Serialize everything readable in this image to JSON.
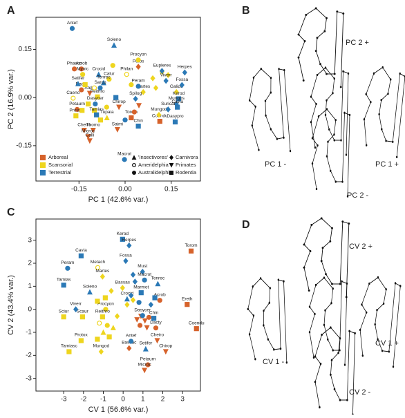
{
  "chart_data": [
    {
      "type": "scatter",
      "panel": "A",
      "x_label": "PC 1 (42.6% var.)",
      "y_label": "PC 2 (16.9% var.)",
      "xlim": [
        -0.29,
        0.245
      ],
      "ylim": [
        -0.26,
        0.25
      ],
      "xticks": [
        -0.15,
        {
          "value": 0,
          "label": "0.00"
        },
        0.15
      ],
      "yticks": [
        -0.15,
        {
          "value": 0,
          "label": "0.00"
        },
        0.15
      ],
      "legend": "lower left",
      "shape_legend": [
        {
          "name": "'Insectivores'",
          "marker": "triangle"
        },
        {
          "name": "Ameridelphia",
          "marker": "circle-open"
        },
        {
          "name": "Australidelphia",
          "marker": "circle"
        },
        {
          "name": "Carnivora",
          "marker": "diamond"
        },
        {
          "name": "Primates",
          "marker": "triangle-down"
        },
        {
          "name": "Rodentia",
          "marker": "square"
        }
      ],
      "series": [
        {
          "name": "Arboreal",
          "color": "#d6622b",
          "labels": [
            "Phasco",
            "Acrob",
            "Potos",
            "Dacty",
            "Atele",
            "Petaurn",
            "Chirop",
            "Torom",
            "Coendu",
            "Cheiro",
            "Thomo",
            "Saimi",
            "Microc",
            "Calli",
            null,
            null
          ],
          "x": [
            -0.165,
            -0.142,
            0.043,
            -0.142,
            -0.115,
            -0.156,
            -0.02,
            0.02,
            0.113,
            -0.133,
            -0.104,
            -0.025,
            -0.12,
            -0.115,
            0.045,
            0.03
          ],
          "y": [
            0.089,
            0.089,
            0.096,
            0.024,
            0.013,
            -0.037,
            -0.03,
            -0.063,
            -0.074,
            -0.102,
            -0.102,
            -0.1,
            -0.122,
            -0.135,
            -0.025,
            -0.045
          ],
          "markers": [
            "circle",
            "circle",
            "diamond",
            "circle",
            "triangle-down",
            "circle",
            "triangle-down",
            "square",
            "square",
            "triangle-down",
            "triangle-down",
            "triangle-down",
            "triangle-down",
            "triangle-down",
            "triangle-down",
            "circle"
          ]
        },
        {
          "name": "Scansorial",
          "color": "#eed51e",
          "labels": [
            "Procyon",
            "Philan",
            "Myoic",
            "Calur",
            "Caeno",
            "Galide",
            "Martes",
            "Reithro",
            "Protox",
            "Tupaia",
            "Mungod",
            null,
            null,
            null,
            null,
            null,
            null,
            null,
            null,
            null,
            null,
            null,
            null,
            null
          ],
          "x": [
            0.043,
            0.005,
            -0.138,
            -0.052,
            -0.169,
            0.167,
            0.059,
            -0.09,
            -0.16,
            -0.059,
            0.11,
            -0.13,
            -0.12,
            -0.14,
            -0.1,
            -0.08,
            -0.06,
            0.09,
            0.1,
            0.12,
            0.14,
            -0.04,
            -0.1,
            0.02
          ],
          "y": [
            0.117,
            0.072,
            0.072,
            0.057,
            -0.002,
            0.017,
            0.017,
            0.002,
            -0.057,
            -0.063,
            -0.054,
            0.04,
            -0.02,
            -0.04,
            -0.04,
            -0.07,
            -0.03,
            0.06,
            0.03,
            0.08,
            0.07,
            0.1,
            0.03,
            0.04
          ],
          "markers": [
            "circle",
            "circle-open",
            "circle",
            "circle",
            "circle-open",
            "diamond",
            "diamond",
            "square",
            "square",
            "triangle",
            "diamond",
            "square",
            "square",
            "square",
            "square",
            "square",
            "circle",
            "diamond",
            "diamond",
            "diamond",
            "diamond",
            "circle",
            "circle-open",
            "circle"
          ]
        },
        {
          "name": "Terrestrial",
          "color": "#2b79b6",
          "labels": [
            "Antef",
            "Soleno",
            "Crocid",
            "Eupleres",
            "Herpes",
            "Viverr",
            "Fossa",
            "Kerod",
            "Mungos",
            "Setifer",
            "Tenrec",
            "Sarco",
            "Peram",
            "Spilog",
            "Dasycer",
            "Tamias",
            "Suricat",
            "Dasypro",
            "Chin",
            "Cavia",
            "Macrot",
            null,
            null
          ],
          "x": [
            -0.172,
            -0.036,
            -0.086,
            0.12,
            0.194,
            0.133,
            0.185,
            0.174,
            0.167,
            -0.153,
            -0.07,
            -0.081,
            0.043,
            0.034,
            -0.097,
            -0.093,
            0.14,
            0.163,
            0.043,
            0.17,
            -0.002,
            -0.03,
            0.0
          ],
          "y": [
            0.215,
            0.163,
            0.072,
            0.083,
            0.078,
            0.052,
            0.039,
            -0.004,
            -0.02,
            0.043,
            0.046,
            0.03,
            0.035,
            -0.004,
            -0.02,
            -0.054,
            -0.037,
            -0.076,
            -0.089,
            -0.03,
            -0.193,
            0.0,
            -0.07
          ],
          "markers": [
            "circle",
            "triangle",
            "triangle",
            "diamond",
            "diamond",
            "diamond",
            "diamond",
            "square",
            "diamond",
            "triangle",
            "triangle",
            "circle",
            "circle",
            "diamond",
            "circle",
            "square",
            "diamond",
            "square",
            "square",
            "square",
            "circle",
            "square",
            "circle"
          ]
        }
      ]
    },
    {
      "type": "scatter",
      "panel": "C",
      "x_label": "CV 1 (56.6% var.)",
      "y_label": "CV 2 (43.4% var.)",
      "xlim": [
        -4.4,
        3.9
      ],
      "ylim": [
        -3.55,
        3.92
      ],
      "xticks": [
        -3,
        -2,
        -1,
        0,
        1,
        2,
        3
      ],
      "yticks": [
        -3,
        -2,
        -1,
        0,
        1,
        2,
        3
      ],
      "series": [
        {
          "name": "Arboreal",
          "color": "#d6622b",
          "labels": [
            "Torom",
            "Acrob",
            "Ereth",
            "Dacty",
            "Coendu",
            "Cheiro",
            "Chirop",
            "Bassac",
            "Petaurn",
            "Microc",
            null,
            null,
            null,
            null,
            null,
            null
          ],
          "x": [
            3.43,
            1.85,
            3.23,
            1.65,
            3.7,
            1.72,
            2.15,
            0.3,
            1.25,
            1.08,
            0.9,
            1.1,
            0.7,
            1.3,
            0.85,
            1.2
          ],
          "y": [
            2.53,
            0.39,
            0.21,
            -0.81,
            -0.84,
            -1.36,
            -1.84,
            -1.69,
            -2.41,
            -2.65,
            -0.3,
            -0.5,
            -0.45,
            -0.35,
            -0.7,
            -0.8
          ],
          "markers": [
            "square",
            "circle",
            "square",
            "circle",
            "square",
            "triangle-down",
            "triangle-down",
            "diamond",
            "circle",
            "triangle-down",
            "triangle-down",
            "triangle-down",
            "triangle-down",
            "circle",
            "circle",
            "triangle-down"
          ]
        },
        {
          "name": "Scansorial",
          "color": "#eed51e",
          "labels": [
            "Metach",
            "Martes",
            "Bassas",
            "Procyon",
            "Reithro",
            "Sciur",
            "Scaur",
            "Protox",
            "Tamiasc",
            "Mungod",
            null,
            null,
            null,
            null,
            null,
            null,
            null,
            null,
            null,
            null,
            null,
            null
          ],
          "x": [
            -1.28,
            -1.04,
            -0.03,
            -0.88,
            -1.04,
            -3.0,
            -2.05,
            -2.12,
            -2.73,
            -1.11,
            -1.3,
            -0.9,
            -0.6,
            -1.2,
            -0.8,
            -1.0,
            -0.5,
            -0.7,
            -1.3,
            0.2,
            -0.3,
            0.5
          ],
          "y": [
            1.81,
            1.42,
            0.93,
            0.0,
            -0.33,
            -0.33,
            -0.33,
            -1.36,
            -1.84,
            -1.84,
            0.35,
            0.5,
            0.8,
            -0.6,
            -0.7,
            -1.0,
            -0.8,
            -1.2,
            -1.3,
            0.2,
            -0.3,
            0.4
          ],
          "markers": [
            "circle-open",
            "diamond",
            "diamond",
            "circle",
            "square",
            "square",
            "square",
            "square",
            "square",
            "diamond",
            "square",
            "square",
            "diamond",
            "circle-open",
            "circle",
            "triangle",
            "triangle",
            "square",
            "square",
            "diamond",
            "diamond",
            "diamond"
          ]
        },
        {
          "name": "Terrestrial",
          "color": "#2b79b6",
          "labels": [
            "Kerod",
            "Herpes",
            "Cavia",
            "Fossa",
            "Peram",
            "Must",
            "Macrot",
            "Tenrec",
            "Tamias",
            "Soleno",
            "Marmot",
            "Crocid",
            "Viverr",
            "Dasycer",
            "Chin",
            "Antef",
            "Setifer",
            null,
            null,
            null,
            null,
            null,
            null
          ],
          "x": [
            -0.03,
            0.3,
            -2.12,
            0.13,
            -2.8,
            0.98,
            1.08,
            1.75,
            -3.0,
            -1.68,
            0.91,
            0.2,
            -2.39,
            0.98,
            1.55,
            0.4,
            1.14,
            0.6,
            0.4,
            0.8,
            1.6,
            1.4,
            0.5
          ],
          "y": [
            3.04,
            2.77,
            2.32,
            2.1,
            1.78,
            1.63,
            1.27,
            1.11,
            1.05,
            0.75,
            0.72,
            0.45,
            0.0,
            -0.27,
            -0.39,
            -1.39,
            -1.72,
            1.2,
            0.6,
            0.3,
            0.5,
            0.2,
            1.5
          ],
          "markers": [
            "square",
            "diamond",
            "square",
            "diamond",
            "circle",
            "diamond",
            "circle",
            "triangle",
            "square",
            "triangle",
            "square",
            "triangle",
            "diamond",
            "circle",
            "square",
            "circle",
            "triangle",
            "diamond",
            "diamond",
            "circle",
            "square",
            "diamond",
            "diamond"
          ]
        }
      ]
    }
  ],
  "shape_panels": [
    {
      "panel": "B",
      "labels": [
        "PC 2 +",
        "PC 1 -",
        "PC 1 +",
        "PC 2 -"
      ]
    },
    {
      "panel": "D",
      "labels": [
        "CV 2 +",
        "CV 1 -",
        "CV 1 +",
        "CV 2 -"
      ]
    }
  ]
}
